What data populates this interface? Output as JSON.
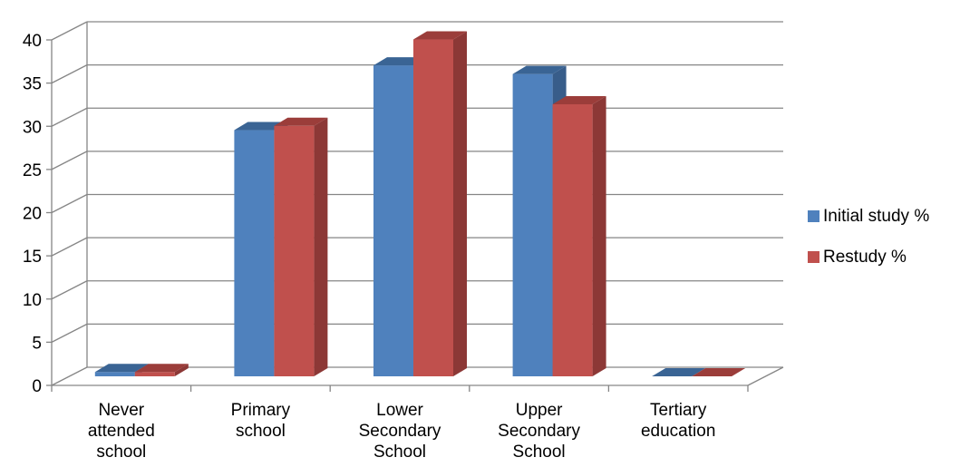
{
  "chart_data": {
    "type": "bar",
    "style": "3d-clustered-column",
    "categories": [
      [
        "Never",
        "attended",
        "school"
      ],
      [
        "Primary",
        "school"
      ],
      [
        "Lower",
        "Secondary",
        "School"
      ],
      [
        "Upper",
        "Secondary",
        "School"
      ],
      [
        "Tertiary",
        "education"
      ]
    ],
    "series": [
      {
        "name": "Initial study %",
        "values": [
          0.5,
          28.5,
          36,
          35,
          0
        ],
        "color": "#4f81bd",
        "side_color": "#385d8a",
        "top_color": "#3a6494"
      },
      {
        "name": "Restudy  %",
        "values": [
          0.5,
          29,
          39,
          31.5,
          0
        ],
        "color": "#c0504d",
        "side_color": "#8c3836",
        "top_color": "#9b3d3a"
      }
    ],
    "ylim": [
      0,
      40
    ],
    "yticks": [
      0,
      5,
      10,
      15,
      20,
      25,
      30,
      35,
      40
    ],
    "grid": true,
    "legend_position": "right",
    "gridline_color": "#868686"
  }
}
